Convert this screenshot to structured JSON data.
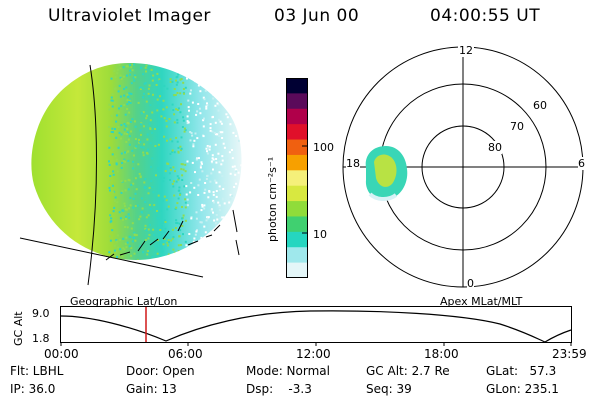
{
  "header": {
    "instrument": "Ultraviolet Imager",
    "date": "03 Jun 00",
    "time": "04:00:55 UT"
  },
  "left_panel": {
    "caption": "Geographic Lat/Lon"
  },
  "right_panel": {
    "caption": "Apex MLat/MLT",
    "mlt_labels": {
      "top": "12",
      "left": "18",
      "right": "6",
      "bottom": "0"
    },
    "lat_labels": [
      "60",
      "70",
      "80"
    ]
  },
  "colorbar": {
    "unit_label": "photon cm⁻²s⁻¹",
    "ticks": [
      "100",
      "10"
    ],
    "scale": "log",
    "colors": [
      "#000033",
      "#5a0a5a",
      "#b0004a",
      "#e0102a",
      "#f06010",
      "#f7a000",
      "#f5f07a",
      "#d8e840",
      "#90dc3a",
      "#40d070",
      "#25d6c0",
      "#9fe8ec",
      "#e4f6f8"
    ]
  },
  "altitude_plot": {
    "ylabel": "GC Alt",
    "yticks": [
      "9.0",
      "1.8"
    ],
    "xticks": [
      "00:00",
      "06:00",
      "12:00",
      "18:00",
      "23:59"
    ],
    "cursor_color": "#d01818"
  },
  "info": {
    "flt": "Flt: LBHL",
    "ip": "IP: 36.0",
    "door": "Door: Open",
    "gain": "Gain: 13",
    "mode": "Mode: Normal",
    "dsp": "Dsp:    -3.3",
    "gcalt": "GC Alt: 2.7 Re",
    "seq": "Seq: 39",
    "glat": "GLat:   57.3",
    "glon": "GLon: 235.1"
  }
}
